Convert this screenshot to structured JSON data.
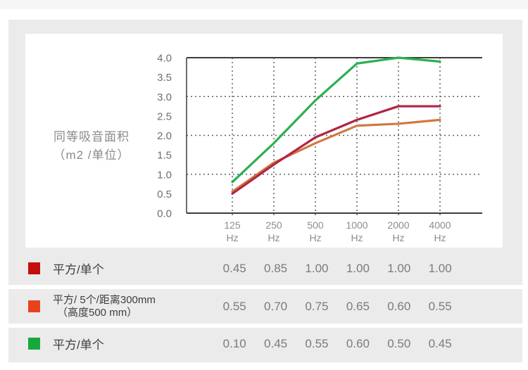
{
  "chart": {
    "ylabel_line1": "同等吸音面积",
    "ylabel_line2": "（m2 /单位）"
  },
  "chart_data": {
    "type": "line",
    "title": "",
    "ylabel": "同等吸音面积（m2 /单位）",
    "categories": [
      "125 Hz",
      "250 Hz",
      "500 Hz",
      "1000 Hz",
      "2000 Hz",
      "4000 Hz"
    ],
    "x_tick_lines": [
      [
        "125",
        "Hz"
      ],
      [
        "250",
        "Hz"
      ],
      [
        "500",
        "Hz"
      ],
      [
        "1000",
        "Hz"
      ],
      [
        "2000",
        "Hz"
      ],
      [
        "4000",
        "Hz"
      ]
    ],
    "ylim": [
      0,
      4
    ],
    "y_ticks": [
      0.0,
      0.5,
      1.0,
      1.5,
      2.0,
      2.5,
      3.0,
      3.5,
      4.0
    ],
    "y_gridlines": [
      1.0,
      2.0,
      3.0
    ],
    "grid": "dashed",
    "legend_position": "table-below",
    "series": [
      {
        "name": "平方/单个",
        "color": "#b02544",
        "values": [
          0.5,
          1.25,
          1.95,
          2.4,
          2.75,
          2.75
        ]
      },
      {
        "name": "平方/ 5个/距离300mm（高度500 mm）",
        "color": "#d0793f",
        "values": [
          0.55,
          1.3,
          1.8,
          2.25,
          2.3,
          2.4
        ]
      },
      {
        "name": "平方/单个",
        "color": "#2bb052",
        "values": [
          0.8,
          1.8,
          2.9,
          3.85,
          4.0,
          3.9
        ]
      }
    ],
    "axis_color": "#3d3d3d",
    "gridline_color": "#606060",
    "y_tick_color": "#6e6e6e",
    "x_tick_color": "#8c8c8c"
  },
  "table": {
    "rows": [
      {
        "swatch_color": "#c40d0d",
        "label": "平方/单个",
        "label2": "",
        "values": [
          "0.45",
          "0.85",
          "1.00",
          "1.00",
          "1.00",
          "1.00"
        ]
      },
      {
        "swatch_color": "#e8431f",
        "label": "平方/ 5个/距离300mm",
        "label2": "（高度500 mm）",
        "values": [
          "0.55",
          "0.70",
          "0.75",
          "0.65",
          "0.60",
          "0.55"
        ]
      },
      {
        "swatch_color": "#17a83c",
        "label": "平方/单个",
        "label2": "",
        "values": [
          "0.10",
          "0.45",
          "0.55",
          "0.60",
          "0.50",
          "0.45"
        ]
      }
    ]
  }
}
